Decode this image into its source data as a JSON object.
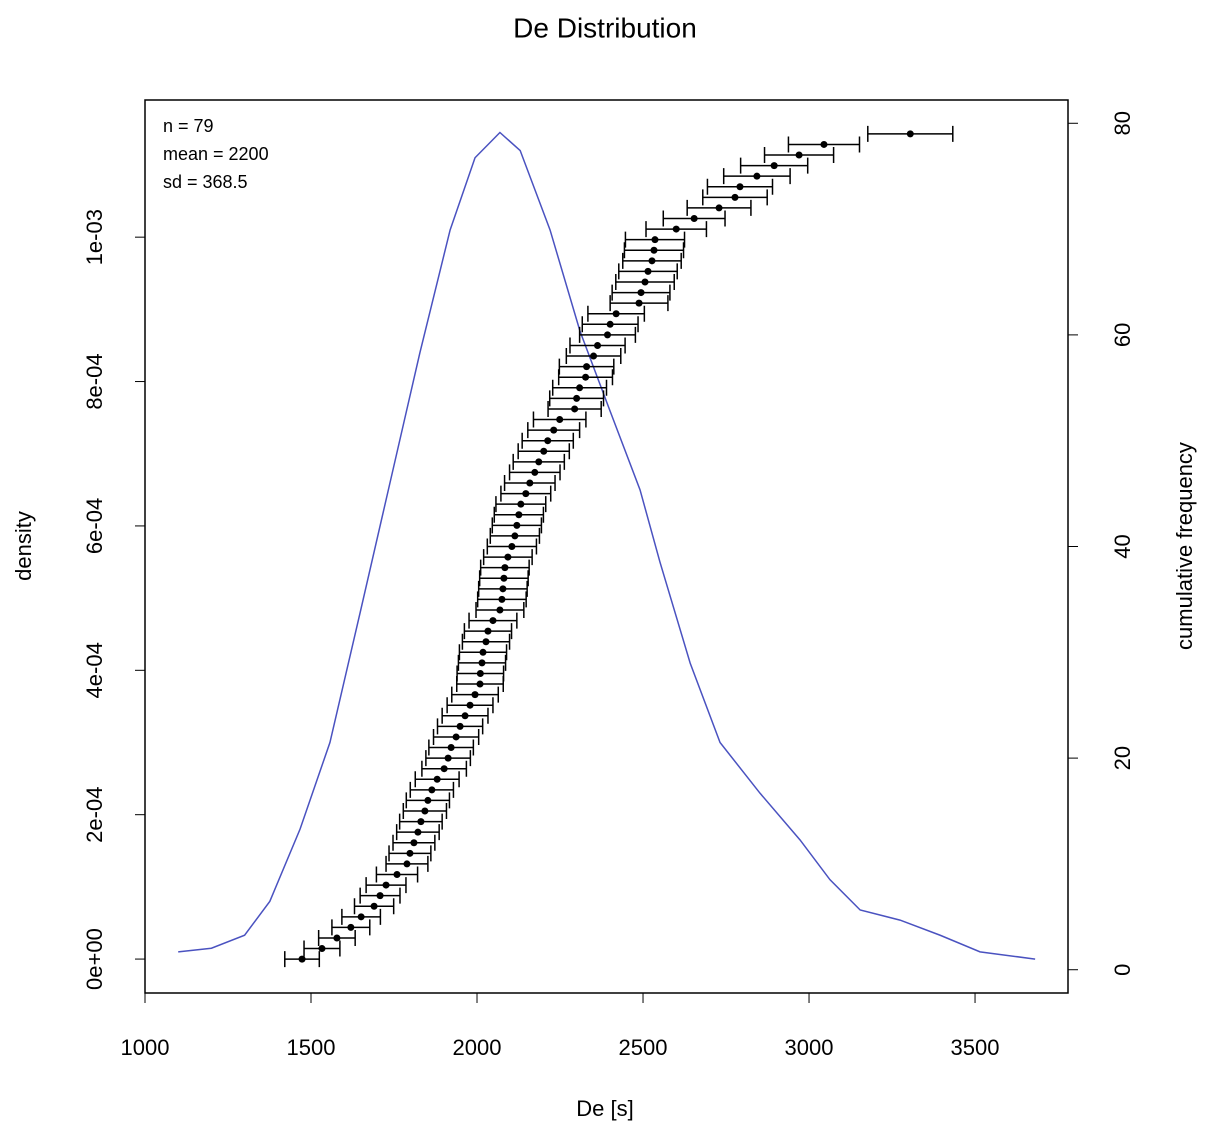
{
  "chart_data": {
    "type": "line",
    "title": "De Distribution",
    "xlabel": "De [s]",
    "ylabel": "density",
    "y2label": "cumulative frequency",
    "annotations": [
      "n = 79",
      "mean = 2200",
      "sd = 368.5"
    ],
    "xlim": [
      1000,
      3780
    ],
    "xticks": [
      1000,
      1500,
      2000,
      2500,
      3000,
      3500
    ],
    "ylim": [
      -4.7e-05,
      0.00119
    ],
    "yticks": [
      {
        "value": 0,
        "label": "0e+00"
      },
      {
        "value": 0.0002,
        "label": "2e-04"
      },
      {
        "value": 0.0004,
        "label": "4e-04"
      },
      {
        "value": 0.0006,
        "label": "6e-04"
      },
      {
        "value": 0.0008,
        "label": "8e-04"
      },
      {
        "value": 0.001,
        "label": "1e-03"
      }
    ],
    "y2lim": [
      -2.2,
      82.2
    ],
    "y2ticks": [
      0,
      20,
      40,
      60,
      80
    ],
    "series": [
      {
        "type": "line",
        "color": "#4a52c0",
        "axis": "y",
        "x": [
          1100,
          1200,
          1300,
          1376,
          1467,
          1557,
          1648,
          1738,
          1828,
          1919,
          1994,
          2069,
          2130,
          2220,
          2310,
          2400,
          2491,
          2551,
          2642,
          2732,
          2852,
          2973,
          3063,
          3154,
          3274,
          3395,
          3515,
          3681
        ],
        "values": [
          1e-05,
          1.5e-05,
          3.3e-05,
          8e-05,
          0.00018,
          0.0003,
          0.00048,
          0.00066,
          0.00084,
          0.00101,
          0.00111,
          0.001145,
          0.00112,
          0.00101,
          0.00087,
          0.00076,
          0.00065,
          0.00055,
          0.00041,
          0.0003,
          0.00023,
          0.000165,
          0.00011,
          6.8e-05,
          5.4e-05,
          3.3e-05,
          1e-05,
          0
        ]
      },
      {
        "type": "errorbar",
        "color": "#000000",
        "axis": "y2",
        "x": [
          1473,
          1533,
          1578,
          1620,
          1651,
          1690,
          1708,
          1726,
          1759,
          1789,
          1798,
          1810,
          1822,
          1831,
          1843,
          1852,
          1864,
          1880,
          1901,
          1913,
          1922,
          1937,
          1949,
          1964,
          1979,
          1994,
          2009,
          2010,
          2015,
          2018,
          2027,
          2033,
          2048,
          2069,
          2075,
          2078,
          2081,
          2084,
          2093,
          2105,
          2114,
          2120,
          2126,
          2132,
          2147,
          2159,
          2174,
          2186,
          2201,
          2213,
          2231,
          2249,
          2294,
          2300,
          2309,
          2327,
          2330,
          2351,
          2363,
          2393,
          2401,
          2419,
          2488,
          2494,
          2506,
          2515,
          2527,
          2533,
          2536,
          2600,
          2654,
          2729,
          2777,
          2792,
          2843,
          2895,
          2970,
          3045,
          3305
        ],
        "xerr": [
          52,
          54,
          55,
          57,
          58,
          59,
          60,
          60,
          62,
          63,
          63,
          63,
          64,
          64,
          65,
          65,
          65,
          66,
          67,
          67,
          67,
          68,
          68,
          69,
          69,
          70,
          70,
          70,
          71,
          71,
          71,
          71,
          72,
          72,
          73,
          73,
          73,
          73,
          73,
          74,
          74,
          74,
          74,
          75,
          75,
          76,
          76,
          77,
          77,
          77,
          78,
          79,
          80,
          81,
          81,
          81,
          82,
          82,
          83,
          84,
          84,
          85,
          87,
          87,
          88,
          88,
          88,
          89,
          89,
          91,
          93,
          96,
          97,
          98,
          100,
          101,
          104,
          107,
          128
        ],
        "values": [
          1,
          2,
          3,
          4,
          5,
          6,
          7,
          8,
          9,
          10,
          11,
          12,
          13,
          14,
          15,
          16,
          17,
          18,
          19,
          20,
          21,
          22,
          23,
          24,
          25,
          26,
          27,
          28,
          29,
          30,
          31,
          32,
          33,
          34,
          35,
          36,
          37,
          38,
          39,
          40,
          41,
          42,
          43,
          44,
          45,
          46,
          47,
          48,
          49,
          50,
          51,
          52,
          53,
          54,
          55,
          56,
          57,
          58,
          59,
          60,
          61,
          62,
          63,
          64,
          65,
          66,
          67,
          68,
          69,
          70,
          71,
          72,
          73,
          74,
          75,
          76,
          77,
          78,
          79
        ]
      }
    ]
  }
}
